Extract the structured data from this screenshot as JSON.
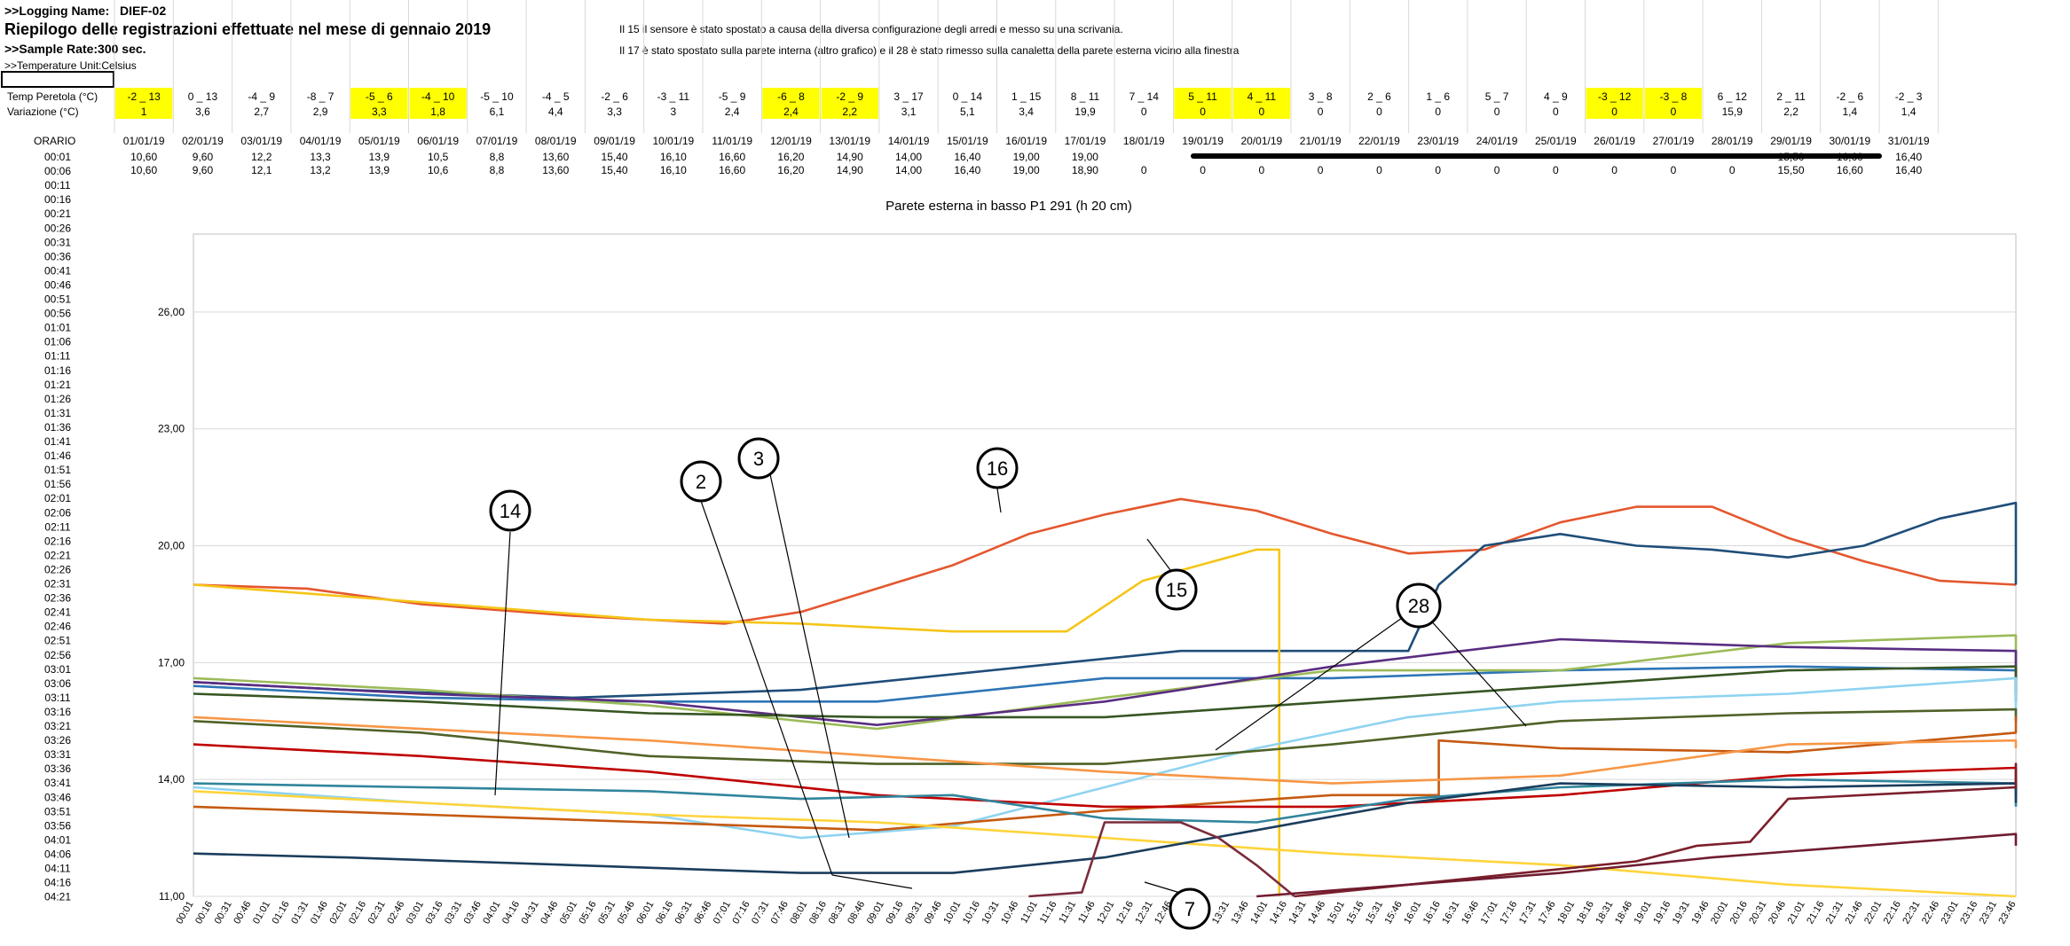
{
  "sheet": {
    "logging_label": ">>Logging Name:",
    "logging_name": "DIEF-02",
    "title": "Riepilogo delle registrazioni effettuate nel mese di gennaio 2019",
    "sample_rate": ">>Sample Rate:300 sec.",
    "temp_unit": ">>Temperature Unit:Celsius",
    "note1": "Il 15 il sensore è stato spostato a causa della diversa configurazione degli arredi e messo su una scrivania.",
    "note2": "Il 17 è stato spostato sulla parete interna (altro grafico) e il 28 è stato rimesso sulla canaletta della parete esterna vicino alla finestra",
    "temp_peretola_label": "Temp Peretola (°C)",
    "variazione_label": "Variazione (°C)",
    "orario_label": "ORARIO",
    "highlight_color": "#ffff00",
    "dates": [
      "01/01/19",
      "02/01/19",
      "03/01/19",
      "04/01/19",
      "05/01/19",
      "06/01/19",
      "07/01/19",
      "08/01/19",
      "09/01/19",
      "10/01/19",
      "11/01/19",
      "12/01/19",
      "13/01/19",
      "14/01/19",
      "15/01/19",
      "16/01/19",
      "17/01/19",
      "18/01/19",
      "19/01/19",
      "20/01/19",
      "21/01/19",
      "22/01/19",
      "23/01/19",
      "24/01/19",
      "25/01/19",
      "26/01/19",
      "27/01/19",
      "28/01/19",
      "29/01/19",
      "30/01/19",
      "31/01/19"
    ],
    "temp_peretola": [
      "-2 _ 13",
      "0 _ 13",
      "-4 _ 9",
      "-8 _ 7",
      "-5 _ 6",
      "-4 _ 10",
      "-5 _ 10",
      "-4 _ 5",
      "-2 _ 6",
      "-3 _ 11",
      "-5 _ 9",
      "-6 _ 8",
      "-2 _ 9",
      "3 _ 17",
      "0 _ 14",
      "1 _ 15",
      "8 _ 11",
      "7 _ 14",
      "5 _ 11",
      "4 _ 11",
      "3 _ 8",
      "2 _ 6",
      "1 _ 6",
      "5 _ 7",
      "4 _ 9",
      "-3 _ 12",
      "-3 _ 8",
      "6 _ 12",
      "2 _ 11",
      "-2 _ 6",
      "-2 _ 3"
    ],
    "variazione": [
      "1",
      "3,6",
      "2,7",
      "2,9",
      "3,3",
      "1,8",
      "6,1",
      "4,4",
      "3,3",
      "3",
      "2,4",
      "2,4",
      "2,2",
      "3,1",
      "5,1",
      "3,4",
      "19,9",
      "0",
      "0",
      "0",
      "0",
      "0",
      "0",
      "0",
      "0",
      "0",
      "0",
      "15,9",
      "2,2",
      "1,4",
      "1,4"
    ],
    "highlighted_days": [
      1,
      5,
      6,
      12,
      13,
      19,
      20,
      26,
      27
    ],
    "row_0001_values": [
      "10,60",
      "9,60",
      "12,2",
      "13,3",
      "13,9",
      "10,5",
      "8,8",
      "13,60",
      "15,40",
      "16,10",
      "16,60",
      "16,20",
      "14,90",
      "14,00",
      "16,40",
      "19,00",
      "19,00",
      "",
      "",
      "",
      "",
      "",
      "",
      "",
      "",
      "",
      "",
      "",
      "15,50",
      "16,60",
      "16,40"
    ],
    "row_0006_values": [
      "10,60",
      "9,60",
      "12,1",
      "13,2",
      "13,9",
      "10,6",
      "8,8",
      "13,60",
      "15,40",
      "16,10",
      "16,60",
      "16,20",
      "14,90",
      "14,00",
      "16,40",
      "19,00",
      "18,90",
      "0",
      "0",
      "0",
      "0",
      "0",
      "0",
      "0",
      "0",
      "0",
      "0",
      "0",
      "15,50",
      "16,60",
      "16,40"
    ],
    "time_rows": [
      "00:01",
      "00:06",
      "00:11",
      "00:16",
      "00:21",
      "00:26",
      "00:31",
      "00:36",
      "00:41",
      "00:46",
      "00:51",
      "00:56",
      "01:01",
      "01:06",
      "01:11",
      "01:16",
      "01:21",
      "01:26",
      "01:31",
      "01:36",
      "01:41",
      "01:46",
      "01:51",
      "01:56",
      "02:01",
      "02:06",
      "02:11",
      "02:16",
      "02:21",
      "02:26",
      "02:31",
      "02:36",
      "02:41",
      "02:46",
      "02:51",
      "02:56",
      "03:01",
      "03:06",
      "03:11",
      "03:16",
      "03:21",
      "03:26",
      "03:31",
      "03:36",
      "03:41",
      "03:46",
      "03:51",
      "03:56",
      "04:01",
      "04:06",
      "04:11",
      "04:16",
      "04:21"
    ]
  },
  "chart_data": {
    "type": "line",
    "title": "Parete esterna in basso P1 291 (h 20 cm)",
    "xlabel": "",
    "ylabel": "",
    "ylim": [
      11,
      28
    ],
    "yticks": [
      "11,00",
      "14,00",
      "17,00",
      "20,00",
      "23,00",
      "26,00"
    ],
    "grid": "horizontal",
    "legend": "none",
    "x_tick_labels": [
      "00:01",
      "00:16",
      "00:31",
      "00:46",
      "01:01",
      "01:16",
      "01:31",
      "01:46",
      "02:01",
      "02:16",
      "02:31",
      "02:46",
      "03:01",
      "03:16",
      "03:31",
      "03:46",
      "04:01",
      "04:16",
      "04:31",
      "04:46",
      "05:01",
      "05:16",
      "05:31",
      "05:46",
      "06:01",
      "06:16",
      "06:31",
      "06:46",
      "07:01",
      "07:16",
      "07:31",
      "07:46",
      "08:01",
      "08:16",
      "08:31",
      "08:46",
      "09:01",
      "09:16",
      "09:31",
      "09:46",
      "10:01",
      "10:16",
      "10:31",
      "10:46",
      "11:01",
      "11:16",
      "11:31",
      "11:46",
      "12:01",
      "12:16",
      "12:31",
      "12:46",
      "13:01",
      "13:16",
      "13:31",
      "13:46",
      "14:01",
      "14:16",
      "14:31",
      "14:46",
      "15:01",
      "15:16",
      "15:31",
      "15:46",
      "16:01",
      "16:16",
      "16:31",
      "16:46",
      "17:01",
      "17:16",
      "17:31",
      "17:46",
      "18:01",
      "18:16",
      "18:31",
      "18:46",
      "19:01",
      "19:16",
      "19:31",
      "19:46",
      "20:01",
      "20:16",
      "20:31",
      "20:46",
      "21:01",
      "21:16",
      "21:31",
      "21:46",
      "22:01",
      "22:16",
      "22:31",
      "22:46",
      "23:01",
      "23:16",
      "23:31",
      "23:46"
    ],
    "series": [
      {
        "color": "#e4572e",
        "points": [
          [
            0,
            19.0
          ],
          [
            1.5,
            18.9
          ],
          [
            3,
            18.5
          ],
          [
            5,
            18.2
          ],
          [
            7,
            18.0
          ],
          [
            8,
            18.3
          ],
          [
            9,
            18.9
          ],
          [
            10,
            19.5
          ],
          [
            11,
            20.3
          ],
          [
            12,
            20.8
          ],
          [
            13,
            21.2
          ],
          [
            14,
            20.9
          ],
          [
            15,
            20.3
          ],
          [
            16,
            19.8
          ],
          [
            17,
            19.9
          ],
          [
            18,
            20.6
          ],
          [
            19,
            21.0
          ],
          [
            20,
            21.0
          ],
          [
            21,
            20.2
          ],
          [
            22,
            19.6
          ],
          [
            23,
            19.1
          ],
          [
            24,
            19.0
          ]
        ]
      },
      {
        "color": "#1f4e79",
        "points": [
          [
            0,
            16.5
          ],
          [
            2,
            16.3
          ],
          [
            5,
            16.1
          ],
          [
            8,
            16.3
          ],
          [
            11,
            16.9
          ],
          [
            13,
            17.3
          ],
          [
            16,
            17.3
          ],
          [
            16.4,
            19.0
          ],
          [
            17,
            20.0
          ],
          [
            18,
            20.3
          ],
          [
            19,
            20.0
          ],
          [
            20,
            19.9
          ],
          [
            21,
            19.7
          ],
          [
            22,
            20.0
          ],
          [
            23,
            20.7
          ],
          [
            24,
            21.1
          ],
          [
            25,
            20.7
          ],
          [
            26,
            20.0
          ],
          [
            27,
            19.6
          ],
          [
            28,
            19.3
          ],
          [
            29,
            19.0
          ]
        ]
      },
      {
        "color": "#f5c518",
        "points": [
          [
            0,
            19.0
          ],
          [
            2,
            18.7
          ],
          [
            4,
            18.4
          ],
          [
            6,
            18.1
          ],
          [
            8,
            18.0
          ],
          [
            10,
            17.8
          ],
          [
            11.5,
            17.8
          ],
          [
            12.5,
            19.1
          ],
          [
            14,
            19.9
          ],
          [
            14.3,
            19.9
          ],
          [
            14.3,
            11.0
          ]
        ]
      },
      {
        "color": "#2e75b6",
        "points": [
          [
            0,
            16.4
          ],
          [
            3,
            16.1
          ],
          [
            6,
            16.0
          ],
          [
            9,
            16.0
          ],
          [
            12,
            16.6
          ],
          [
            15,
            16.6
          ],
          [
            18,
            16.8
          ],
          [
            21,
            16.9
          ],
          [
            24,
            16.8
          ],
          [
            27,
            16.5
          ],
          [
            29,
            16.2
          ]
        ]
      },
      {
        "color": "#9bbb59",
        "points": [
          [
            0,
            16.6
          ],
          [
            3,
            16.3
          ],
          [
            6,
            15.9
          ],
          [
            9,
            15.3
          ],
          [
            12,
            16.1
          ],
          [
            15,
            16.8
          ],
          [
            18,
            16.8
          ],
          [
            21,
            17.5
          ],
          [
            24,
            17.7
          ],
          [
            27,
            16.9
          ],
          [
            29,
            16.5
          ]
        ]
      },
      {
        "color": "#5a2d82",
        "points": [
          [
            0,
            16.5
          ],
          [
            3,
            16.2
          ],
          [
            6,
            16.0
          ],
          [
            9,
            15.4
          ],
          [
            12,
            16.0
          ],
          [
            15,
            16.9
          ],
          [
            18,
            17.6
          ],
          [
            21,
            17.4
          ],
          [
            24,
            17.3
          ],
          [
            27,
            16.7
          ],
          [
            29,
            16.2
          ]
        ]
      },
      {
        "color": "#375623",
        "points": [
          [
            0,
            16.2
          ],
          [
            3,
            16.0
          ],
          [
            6,
            15.7
          ],
          [
            9,
            15.6
          ],
          [
            12,
            15.6
          ],
          [
            15,
            16.0
          ],
          [
            18,
            16.4
          ],
          [
            21,
            16.8
          ],
          [
            24,
            16.9
          ],
          [
            27,
            16.5
          ],
          [
            29,
            16.0
          ]
        ]
      },
      {
        "color": "#8fd3f0",
        "points": [
          [
            0,
            13.8
          ],
          [
            3,
            13.4
          ],
          [
            6,
            13.1
          ],
          [
            8,
            12.5
          ],
          [
            10,
            12.8
          ],
          [
            12,
            13.8
          ],
          [
            14,
            14.8
          ],
          [
            16,
            15.6
          ],
          [
            18,
            16.0
          ],
          [
            21,
            16.2
          ],
          [
            24,
            16.6
          ],
          [
            27,
            15.9
          ],
          [
            29,
            15.5
          ]
        ]
      },
      {
        "color": "#4f6228",
        "points": [
          [
            0,
            15.5
          ],
          [
            3,
            15.2
          ],
          [
            6,
            14.6
          ],
          [
            9,
            14.4
          ],
          [
            12,
            14.4
          ],
          [
            15,
            14.9
          ],
          [
            18,
            15.5
          ],
          [
            21,
            15.7
          ],
          [
            24,
            15.8
          ],
          [
            27,
            15.6
          ],
          [
            29,
            15.5
          ]
        ]
      },
      {
        "color": "#c55a11",
        "points": [
          [
            0,
            13.3
          ],
          [
            3,
            13.1
          ],
          [
            6,
            12.9
          ],
          [
            9,
            12.7
          ],
          [
            12,
            13.2
          ],
          [
            15,
            13.6
          ],
          [
            16.4,
            13.6
          ],
          [
            16.4,
            15.0
          ],
          [
            18,
            14.8
          ],
          [
            21,
            14.7
          ],
          [
            24,
            15.2
          ],
          [
            27,
            15.6
          ],
          [
            29,
            15.3
          ]
        ]
      },
      {
        "color": "#f79646",
        "points": [
          [
            0,
            15.6
          ],
          [
            3,
            15.3
          ],
          [
            6,
            15.0
          ],
          [
            9,
            14.6
          ],
          [
            12,
            14.2
          ],
          [
            15,
            13.9
          ],
          [
            18,
            14.1
          ],
          [
            21,
            14.9
          ],
          [
            24,
            15.0
          ],
          [
            27,
            15.0
          ],
          [
            29,
            14.8
          ]
        ]
      },
      {
        "color": "#c00000",
        "points": [
          [
            0,
            14.9
          ],
          [
            3,
            14.6
          ],
          [
            6,
            14.2
          ],
          [
            9,
            13.6
          ],
          [
            12,
            13.3
          ],
          [
            15,
            13.3
          ],
          [
            18,
            13.6
          ],
          [
            21,
            14.1
          ],
          [
            24,
            14.3
          ],
          [
            27,
            13.9
          ],
          [
            29,
            13.6
          ]
        ]
      },
      {
        "color": "#31859c",
        "points": [
          [
            0,
            13.9
          ],
          [
            3,
            13.8
          ],
          [
            6,
            13.7
          ],
          [
            8,
            13.5
          ],
          [
            10,
            13.6
          ],
          [
            12,
            13.0
          ],
          [
            14,
            12.9
          ],
          [
            16,
            13.5
          ],
          [
            18,
            13.8
          ],
          [
            21,
            14.0
          ],
          [
            24,
            13.9
          ],
          [
            27,
            13.4
          ],
          [
            29,
            13.3
          ]
        ]
      },
      {
        "color": "#ffd43b",
        "points": [
          [
            0,
            13.7
          ],
          [
            3,
            13.4
          ],
          [
            6,
            13.1
          ],
          [
            9,
            12.9
          ],
          [
            12,
            12.5
          ],
          [
            15,
            12.1
          ],
          [
            18,
            11.8
          ],
          [
            21,
            11.3
          ],
          [
            24,
            11.0
          ]
        ]
      },
      {
        "color": "#1b3d5c",
        "points": [
          [
            0,
            12.1
          ],
          [
            2,
            12.0
          ],
          [
            5,
            11.8
          ],
          [
            8,
            11.6
          ],
          [
            10,
            11.6
          ],
          [
            12,
            12.0
          ],
          [
            14,
            12.7
          ],
          [
            16,
            13.4
          ],
          [
            18,
            13.9
          ],
          [
            21,
            13.8
          ],
          [
            24,
            13.9
          ],
          [
            27,
            13.6
          ],
          [
            29,
            13.4
          ]
        ]
      },
      {
        "color": "#7b2c3c",
        "points": [
          [
            11,
            11.0
          ],
          [
            11.7,
            11.1
          ],
          [
            12,
            12.9
          ],
          [
            13,
            12.9
          ],
          [
            13.5,
            12.5
          ],
          [
            14,
            11.8
          ],
          [
            14.5,
            11.0
          ]
        ]
      },
      {
        "color": "#7b1f2b",
        "points": [
          [
            14.5,
            11.0
          ],
          [
            16,
            11.3
          ],
          [
            17.5,
            11.6
          ],
          [
            19,
            11.9
          ],
          [
            19.8,
            12.3
          ],
          [
            20.5,
            12.4
          ],
          [
            21,
            13.5
          ],
          [
            24,
            13.8
          ],
          [
            26,
            14.4
          ],
          [
            27.5,
            14.2
          ],
          [
            29,
            14.1
          ]
        ]
      },
      {
        "color": "#701c30",
        "points": [
          [
            14,
            11.0
          ],
          [
            16,
            11.3
          ],
          [
            18,
            11.6
          ],
          [
            20,
            12.0
          ],
          [
            22,
            12.3
          ],
          [
            24,
            12.6
          ],
          [
            26,
            12.6
          ],
          [
            27,
            12.3
          ],
          [
            29,
            12.3
          ]
        ]
      }
    ],
    "callout_labels": [
      "14",
      "2",
      "3",
      "16",
      "15",
      "28",
      "7"
    ]
  }
}
